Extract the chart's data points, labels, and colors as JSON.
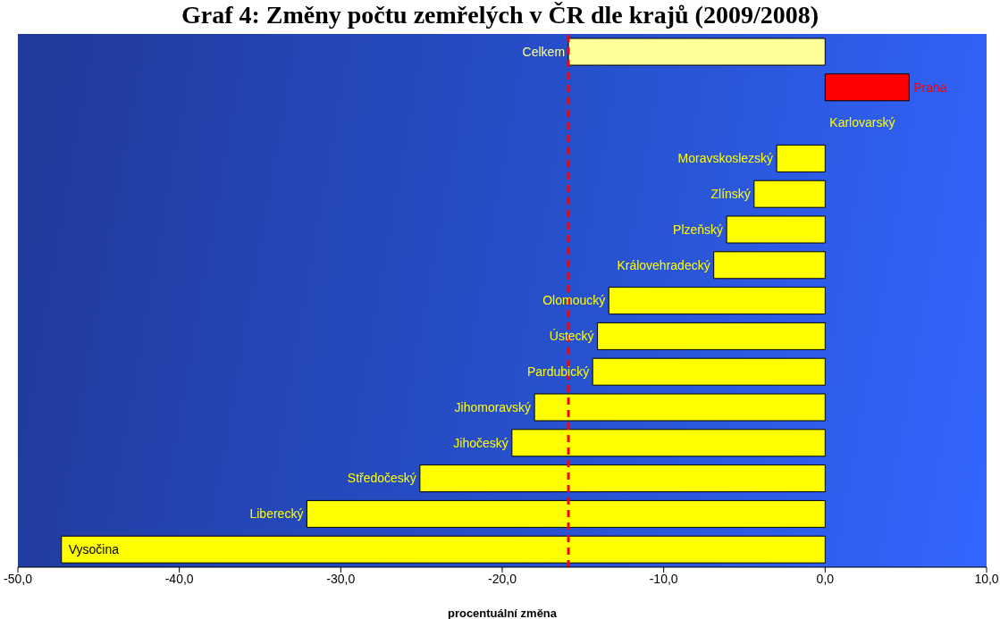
{
  "chart_data": {
    "type": "bar",
    "orientation": "horizontal",
    "title": "Graf 4: Změny počtu zemřelých v ČR dle krajů (2009/2008)",
    "xlabel": "procentuální změna",
    "categories": [
      "Celkem",
      "Praha",
      "Karlovarský",
      "Moravskoslezský",
      "Zlínský",
      "Plzeňský",
      "Královehradecký",
      "Olomoucký",
      "Ústecký",
      "Pardubický",
      "Jihomoravský",
      "Jihočeský",
      "Středočeský",
      "Liberecký",
      "Vysočina"
    ],
    "values": [
      -15.9,
      5.2,
      0,
      -3.0,
      -4.4,
      -6.1,
      -6.9,
      -13.4,
      -14.1,
      -14.4,
      -18.0,
      -19.4,
      -25.1,
      -32.1,
      -47.3
    ],
    "colors": [
      "#ffff99",
      "#ff0000",
      "#ffff00",
      "#ffff00",
      "#ffff00",
      "#ffff00",
      "#ffff00",
      "#ffff00",
      "#ffff00",
      "#ffff00",
      "#ffff00",
      "#ffff00",
      "#ffff00",
      "#ffff00",
      "#ffff00"
    ],
    "xlim": [
      -50,
      10
    ],
    "xticks": [
      {
        "value": -50,
        "label": "-50,0"
      },
      {
        "value": -40,
        "label": "-40,0"
      },
      {
        "value": -30,
        "label": "-30,0"
      },
      {
        "value": -20,
        "label": "-20,0"
      },
      {
        "value": -10,
        "label": "-10,0"
      },
      {
        "value": 0,
        "label": "0,0"
      },
      {
        "value": 10,
        "label": "10,0"
      }
    ],
    "ref_lines": [
      {
        "axis": "x",
        "value": -15.9,
        "color": "#ff0000",
        "line_style": "dashed"
      }
    ],
    "grid": false,
    "legend": false
  }
}
